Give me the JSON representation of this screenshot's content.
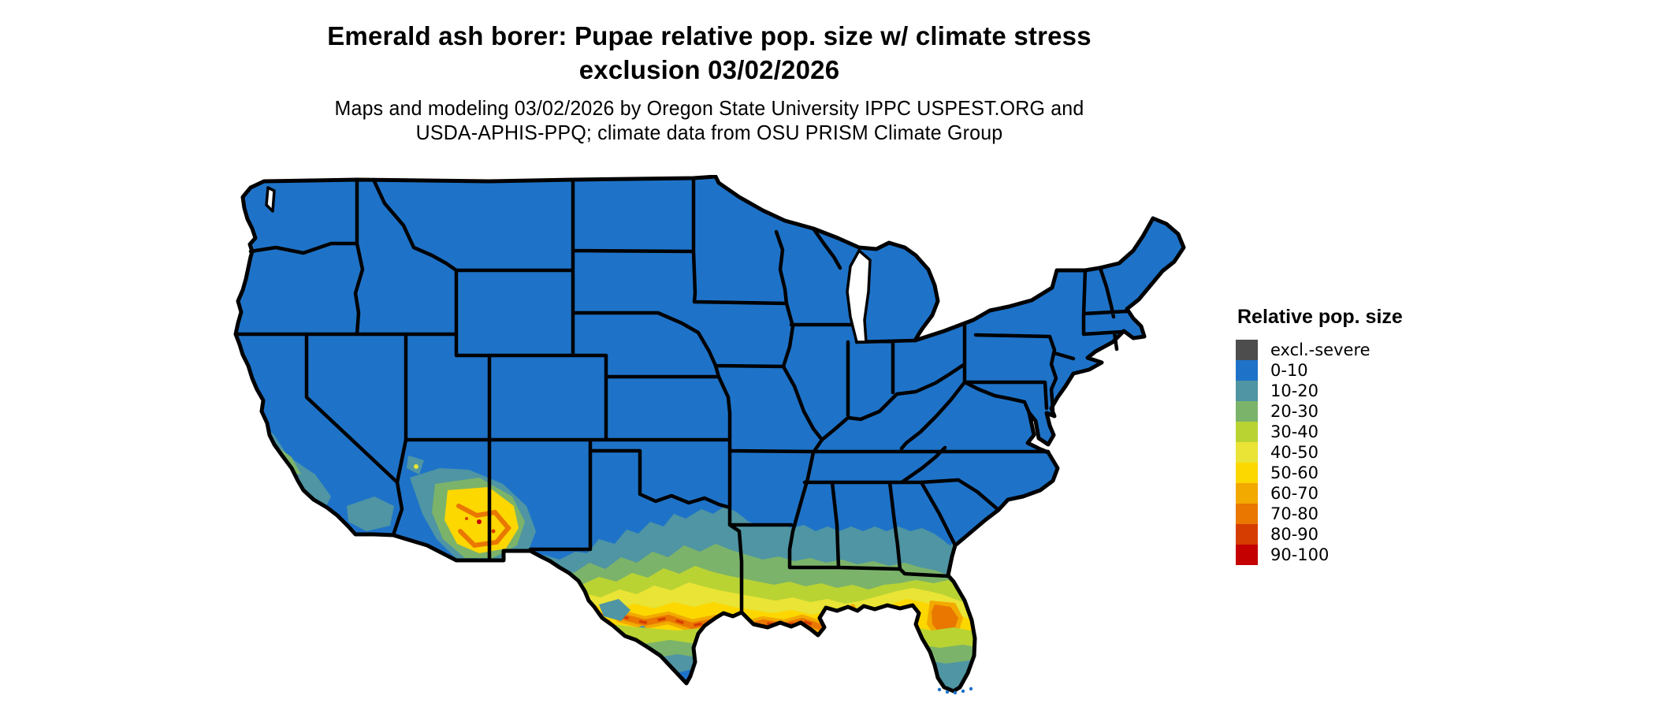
{
  "title": {
    "line1": "Emerald ash borer: Pupae relative pop. size w/ climate stress",
    "line2": "exclusion 03/02/2026"
  },
  "subtitle": {
    "line1": "Maps and modeling 03/02/2026 by Oregon State University IPPC USPEST.ORG and",
    "line2": "USDA-APHIS-PPQ; climate data from OSU PRISM Climate Group"
  },
  "legend": {
    "title": "Relative pop. size",
    "items": [
      {
        "key": "excl-severe",
        "label": "excl.-severe",
        "color": "#4d4d4d"
      },
      {
        "key": "0-10",
        "label": "0-10",
        "color": "#1e73c8"
      },
      {
        "key": "10-20",
        "label": "10-20",
        "color": "#4f95a3"
      },
      {
        "key": "20-30",
        "label": "20-30",
        "color": "#7cb36a"
      },
      {
        "key": "30-40",
        "label": "30-40",
        "color": "#b9d333"
      },
      {
        "key": "40-50",
        "label": "40-50",
        "color": "#e9e435"
      },
      {
        "key": "50-60",
        "label": "50-60",
        "color": "#fdd700"
      },
      {
        "key": "60-70",
        "label": "60-70",
        "color": "#f2a900"
      },
      {
        "key": "70-80",
        "label": "70-80",
        "color": "#e97700"
      },
      {
        "key": "80-90",
        "label": "80-90",
        "color": "#d63d00"
      },
      {
        "key": "90-100",
        "label": "90-100",
        "color": "#c40000"
      }
    ]
  },
  "map_data": {
    "type": "choropleth-raster",
    "area": "Contiguous United States with black state borders; Great Lakes and ocean shown white",
    "variable": "Emerald ash borer pupae relative population size (%) with climate stress exclusion",
    "date": "03/02/2026",
    "regions": [
      {
        "region": "Pacific Northwest, Rockies, Midwest, Northeast, most of the US",
        "class": "0-10"
      },
      {
        "region": "Central/coastal California patches",
        "class": "10-30 with 40-60 coastal spots"
      },
      {
        "region": "Southern Arizona / far southern Nevada",
        "class": "40-80 with 80-100 specks"
      },
      {
        "region": "Band across central Texas, Oklahoma south edge, Arkansas, Mississippi, Alabama, Georgia mid-latitudes",
        "class": "10-40"
      },
      {
        "region": "Gulf Coast: south-east Texas, Louisiana, south Mississippi/Alabama, Florida panhandle, south Georgia",
        "class": "40-60"
      },
      {
        "region": "Streak through east Texas and central Louisiana; blob in north-central Florida",
        "class": "60-80 with 80-90 specks"
      },
      {
        "region": "South Texas toward Brownsville tip",
        "class": "cools back 30-20-10 to 0-10"
      },
      {
        "region": "South Florida toward the Keys",
        "class": "cools back 30-20-10 to 0-10"
      }
    ]
  }
}
